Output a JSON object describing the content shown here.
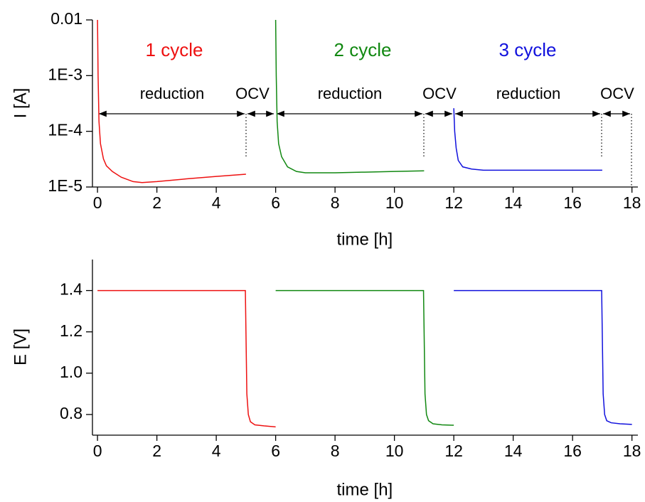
{
  "chart_data": [
    {
      "type": "line",
      "yscale": "log",
      "xlabel": "time [h]",
      "ylabel": "I [A]",
      "xlim": [
        -0.17,
        18.2
      ],
      "xticks": [
        0,
        2,
        4,
        6,
        8,
        10,
        12,
        14,
        16,
        18
      ],
      "ylim": [
        1e-05,
        0.01
      ],
      "yticks": [
        {
          "value": 0.01,
          "label": "0.01"
        },
        {
          "value": 0.001,
          "label": "1E-3"
        },
        {
          "value": 0.0001,
          "label": "1E-4"
        },
        {
          "value": 1e-05,
          "label": "1E-5"
        }
      ],
      "annotations": [
        "reduction",
        "OCV",
        "reduction",
        "OCV",
        "reduction",
        "OCV"
      ],
      "series": [
        {
          "name": "1 cycle",
          "color": "#ee1111",
          "x": [
            0,
            0.02,
            0.05,
            0.1,
            0.2,
            0.3,
            0.5,
            0.8,
            1.2,
            1.5,
            2,
            3,
            4,
            5
          ],
          "values": [
            0.01,
            0.001,
            0.00015,
            6e-05,
            3.2e-05,
            2.4e-05,
            1.9e-05,
            1.5e-05,
            1.25e-05,
            1.2e-05,
            1.25e-05,
            1.4e-05,
            1.55e-05,
            1.7e-05
          ]
        },
        {
          "name": "2 cycle",
          "color": "#118811",
          "x": [
            6,
            6.02,
            6.05,
            6.1,
            6.2,
            6.4,
            6.7,
            7,
            8,
            9,
            10,
            11
          ],
          "values": [
            0.01,
            0.001,
            0.00015,
            6e-05,
            3.5e-05,
            2.3e-05,
            1.9e-05,
            1.8e-05,
            1.8e-05,
            1.85e-05,
            1.9e-05,
            1.95e-05
          ]
        },
        {
          "name": "3 cycle",
          "color": "#1111dd",
          "x": [
            12,
            12.03,
            12.08,
            12.15,
            12.3,
            12.6,
            13,
            14,
            15,
            16,
            17
          ],
          "values": [
            0.00026,
            0.0001,
            5e-05,
            3e-05,
            2.3e-05,
            2.1e-05,
            2e-05,
            2e-05,
            2e-05,
            2e-05,
            2e-05
          ]
        }
      ]
    },
    {
      "type": "line",
      "xlabel": "time [h]",
      "ylabel": "E [V]",
      "xlim": [
        -0.17,
        18.2
      ],
      "xticks": [
        0,
        2,
        4,
        6,
        8,
        10,
        12,
        14,
        16,
        18
      ],
      "ylim": [
        0.7,
        1.55
      ],
      "yticks": [
        0.8,
        {
          "value": 1.0,
          "label": "1.0"
        },
        1.2,
        1.4
      ],
      "series": [
        {
          "color": "#ee1111",
          "x": [
            0,
            4.98,
            5.0,
            5.03,
            5.08,
            5.15,
            5.3,
            5.6,
            6
          ],
          "values": [
            1.4,
            1.4,
            1.2,
            0.9,
            0.8,
            0.765,
            0.75,
            0.745,
            0.74
          ]
        },
        {
          "color": "#118811",
          "x": [
            6,
            10.98,
            11,
            11.03,
            11.08,
            11.15,
            11.3,
            11.6,
            12
          ],
          "values": [
            1.4,
            1.4,
            1.2,
            0.9,
            0.8,
            0.77,
            0.755,
            0.75,
            0.748
          ]
        },
        {
          "color": "#1111dd",
          "x": [
            12,
            16.98,
            17,
            17.03,
            17.08,
            17.15,
            17.3,
            17.6,
            18
          ],
          "values": [
            1.4,
            1.4,
            1.2,
            0.9,
            0.8,
            0.77,
            0.76,
            0.755,
            0.752
          ]
        }
      ]
    }
  ]
}
